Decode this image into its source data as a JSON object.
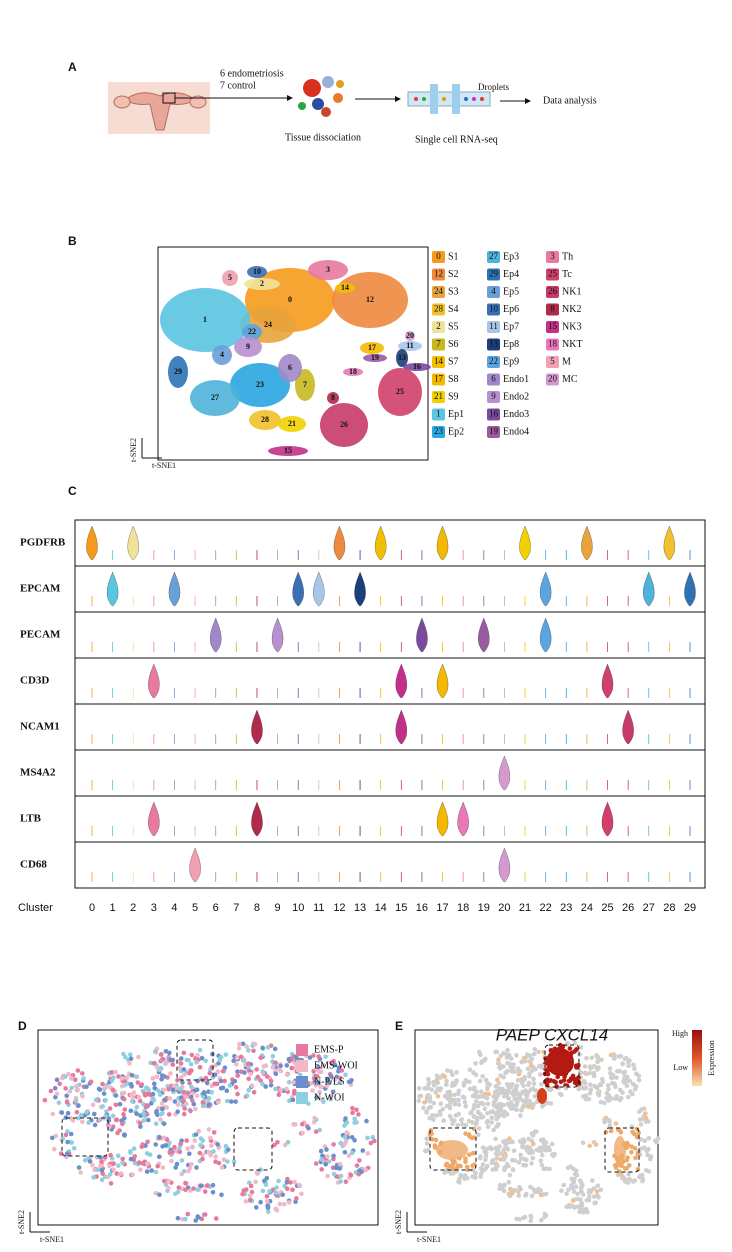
{
  "panel_a": {
    "letter": "A",
    "groups_1": "6 endometriosis",
    "groups_2": "7 control",
    "step_1": "Tissue dissociation",
    "droplets": "Droplets",
    "step_2": "Single cell RNA-seq",
    "step_3": "Data analysis"
  },
  "panel_b": {
    "letter": "B",
    "x_label": "t-SNE1",
    "y_label": "t-SNE2",
    "legend": [
      {
        "id": "0",
        "name": "S1",
        "color": "#f59a1c"
      },
      {
        "id": "12",
        "name": "S2",
        "color": "#ee8a3e"
      },
      {
        "id": "24",
        "name": "S3",
        "color": "#e8a33c"
      },
      {
        "id": "28",
        "name": "S4",
        "color": "#f2c02c"
      },
      {
        "id": "2",
        "name": "S5",
        "color": "#efe39a"
      },
      {
        "id": "7",
        "name": "S6",
        "color": "#c8b820"
      },
      {
        "id": "14",
        "name": "S7",
        "color": "#f0c000"
      },
      {
        "id": "17",
        "name": "S8",
        "color": "#f5b800"
      },
      {
        "id": "21",
        "name": "S9",
        "color": "#f2d000"
      },
      {
        "id": "1",
        "name": "Ep1",
        "color": "#5bc4e0"
      },
      {
        "id": "23",
        "name": "Ep2",
        "color": "#2aa6e0"
      },
      {
        "id": "27",
        "name": "Ep3",
        "color": "#4fb3d9"
      },
      {
        "id": "29",
        "name": "Ep4",
        "color": "#2e74b5"
      },
      {
        "id": "4",
        "name": "Ep5",
        "color": "#6a9fd8"
      },
      {
        "id": "10",
        "name": "Ep6",
        "color": "#3a6fb5"
      },
      {
        "id": "11",
        "name": "Ep7",
        "color": "#a9c6ea"
      },
      {
        "id": "13",
        "name": "Ep8",
        "color": "#1a3f7a"
      },
      {
        "id": "22",
        "name": "Ep9",
        "color": "#5aa5e0"
      },
      {
        "id": "6",
        "name": "Endo1",
        "color": "#a088c8"
      },
      {
        "id": "9",
        "name": "Endo2",
        "color": "#b88fd0"
      },
      {
        "id": "16",
        "name": "Endo3",
        "color": "#7a4a9f"
      },
      {
        "id": "19",
        "name": "Endo4",
        "color": "#9a5aa0"
      },
      {
        "id": "3",
        "name": "Th",
        "color": "#e87aa0"
      },
      {
        "id": "25",
        "name": "Tc",
        "color": "#d0406a"
      },
      {
        "id": "26",
        "name": "NK1",
        "color": "#c63a68"
      },
      {
        "id": "8",
        "name": "NK2",
        "color": "#b02a4a"
      },
      {
        "id": "15",
        "name": "NK3",
        "color": "#c2308a"
      },
      {
        "id": "18",
        "name": "NKT",
        "color": "#e878b8"
      },
      {
        "id": "5",
        "name": "M",
        "color": "#f0a0b0"
      },
      {
        "id": "20",
        "name": "MC",
        "color": "#d49ad0"
      }
    ]
  },
  "panel_c": {
    "letter": "C",
    "x_label": "Cluster",
    "cluster_labels": [
      "0",
      "1",
      "2",
      "3",
      "4",
      "5",
      "6",
      "7",
      "8",
      "9",
      "10",
      "11",
      "12",
      "13",
      "14",
      "15",
      "16",
      "17",
      "18",
      "19",
      "20",
      "21",
      "22",
      "23",
      "24",
      "25",
      "26",
      "27",
      "28",
      "29"
    ],
    "genes": [
      {
        "name": "PGDFRB",
        "expressed": [
          0,
          2,
          12,
          14,
          17,
          21,
          24,
          28
        ]
      },
      {
        "name": "EPCAM",
        "expressed": [
          1,
          4,
          10,
          11,
          13,
          22,
          27,
          29
        ]
      },
      {
        "name": "PECAM",
        "expressed": [
          6,
          9,
          16,
          19,
          22
        ]
      },
      {
        "name": "CD3D",
        "expressed": [
          3,
          15,
          17,
          25
        ]
      },
      {
        "name": "NCAM1",
        "expressed": [
          8,
          15,
          26
        ]
      },
      {
        "name": "MS4A2",
        "expressed": [
          20
        ]
      },
      {
        "name": "LTB",
        "expressed": [
          3,
          8,
          17,
          18,
          25
        ]
      },
      {
        "name": "CD68",
        "expressed": [
          5,
          20
        ]
      }
    ]
  },
  "panel_d": {
    "letter": "D",
    "x_label": "t-SNE1",
    "y_label": "t-SNE2",
    "legend": [
      {
        "name": "EMS-P",
        "color": "#e8799e"
      },
      {
        "name": "EMS-WOI",
        "color": "#f2b8c6"
      },
      {
        "name": "N-P/LS",
        "color": "#6a8fcc"
      },
      {
        "name": "N-WOI",
        "color": "#8fd0e0"
      }
    ]
  },
  "panel_e": {
    "letter": "E",
    "title": "PAEP CXCL14",
    "high": "High",
    "low": "Low",
    "colorbar_label": "Expression",
    "x_label": "t-SNE1",
    "y_label": "t-SNE2"
  }
}
